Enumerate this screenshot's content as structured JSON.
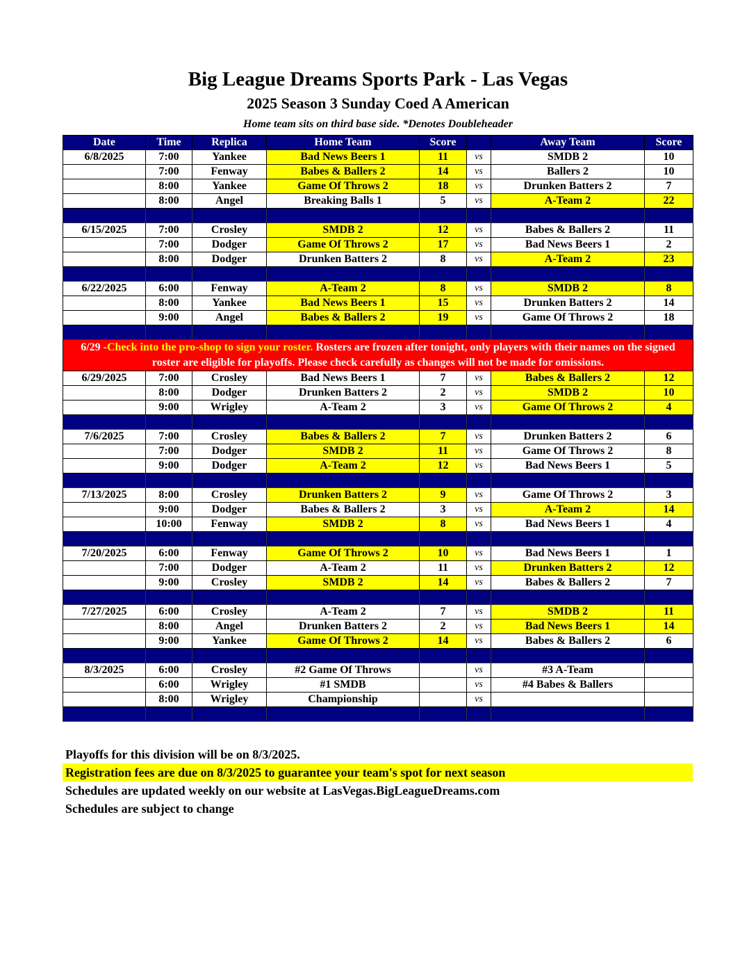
{
  "title": "Big League Dreams Sports Park - Las Vegas",
  "subtitle": "2025 Season 3 Sunday Coed A American",
  "note": "Home team sits on third base side.  *Denotes Doubleheader",
  "headers": [
    "Date",
    "Time",
    "Replica",
    "Home Team",
    "Score",
    "",
    "Away Team",
    "Score"
  ],
  "vs_label": "vs",
  "colors": {
    "header": "#000080",
    "winner": "#ffff00",
    "banner": "#ff0000"
  },
  "banner": {
    "date": "6/29 -",
    "highlight": "Check into the pro-shop to sign your roster.",
    "text": " Rosters are frozen after tonight, only players with their names on the signed roster are eligible for playoffs. Please check carefully as changes will not be made for omissions."
  },
  "weeks": [
    {
      "games": [
        {
          "date": "6/8/2025",
          "time": "7:00",
          "replica": "Yankee",
          "home": "Bad News Beers 1",
          "hs": "11",
          "away": "SMDB 2",
          "as": "10",
          "winner": "home"
        },
        {
          "date": "",
          "time": "7:00",
          "replica": "Fenway",
          "home": "Babes & Ballers 2",
          "hs": "14",
          "away": "Ballers 2",
          "as": "10",
          "winner": "home"
        },
        {
          "date": "",
          "time": "8:00",
          "replica": "Yankee",
          "home": "Game Of Throws 2",
          "hs": "18",
          "away": "Drunken Batters 2",
          "as": "7",
          "winner": "home"
        },
        {
          "date": "",
          "time": "8:00",
          "replica": "Angel",
          "home": "Breaking Balls 1",
          "hs": "5",
          "away": "A-Team 2",
          "as": "22",
          "winner": "away"
        }
      ]
    },
    {
      "games": [
        {
          "date": "6/15/2025",
          "time": "7:00",
          "replica": "Crosley",
          "home": "SMDB 2",
          "hs": "12",
          "away": "Babes & Ballers 2",
          "as": "11",
          "winner": "home"
        },
        {
          "date": "",
          "time": "7:00",
          "replica": "Dodger",
          "home": "Game Of Throws 2",
          "hs": "17",
          "away": "Bad News Beers 1",
          "as": "2",
          "winner": "home"
        },
        {
          "date": "",
          "time": "8:00",
          "replica": "Dodger",
          "home": "Drunken Batters 2",
          "hs": "8",
          "away": "A-Team 2",
          "as": "23",
          "winner": "away"
        }
      ]
    },
    {
      "games": [
        {
          "date": "6/22/2025",
          "time": "6:00",
          "replica": "Fenway",
          "home": "A-Team 2",
          "hs": "8",
          "away": "SMDB 2",
          "as": "8",
          "winner": "both"
        },
        {
          "date": "",
          "time": "8:00",
          "replica": "Yankee",
          "home": "Bad News Beers 1",
          "hs": "15",
          "away": "Drunken Batters 2",
          "as": "14",
          "winner": "home"
        },
        {
          "date": "",
          "time": "9:00",
          "replica": "Angel",
          "home": "Babes & Ballers 2",
          "hs": "19",
          "away": "Game Of Throws 2",
          "as": "18",
          "winner": "home"
        }
      ]
    },
    {
      "banner": true,
      "games": [
        {
          "date": "6/29/2025",
          "time": "7:00",
          "replica": "Crosley",
          "home": "Bad News Beers 1",
          "hs": "7",
          "away": "Babes & Ballers 2",
          "as": "12",
          "winner": "away"
        },
        {
          "date": "",
          "time": "8:00",
          "replica": "Dodger",
          "home": "Drunken Batters 2",
          "hs": "2",
          "away": "SMDB 2",
          "as": "10",
          "winner": "away"
        },
        {
          "date": "",
          "time": "9:00",
          "replica": "Wrigley",
          "home": "A-Team 2",
          "hs": "3",
          "away": "Game Of Throws 2",
          "as": "4",
          "winner": "away"
        }
      ]
    },
    {
      "games": [
        {
          "date": "7/6/2025",
          "time": "7:00",
          "replica": "Crosley",
          "home": "Babes & Ballers 2",
          "hs": "7",
          "away": "Drunken Batters 2",
          "as": "6",
          "winner": "home"
        },
        {
          "date": "",
          "time": "7:00",
          "replica": "Dodger",
          "home": "SMDB 2",
          "hs": "11",
          "away": "Game Of Throws 2",
          "as": "8",
          "winner": "home"
        },
        {
          "date": "",
          "time": "9:00",
          "replica": "Dodger",
          "home": "A-Team 2",
          "hs": "12",
          "away": "Bad News Beers 1",
          "as": "5",
          "winner": "home"
        }
      ]
    },
    {
      "games": [
        {
          "date": "7/13/2025",
          "time": "8:00",
          "replica": "Crosley",
          "home": "Drunken Batters 2",
          "hs": "9",
          "away": "Game Of Throws 2",
          "as": "3",
          "winner": "home"
        },
        {
          "date": "",
          "time": "9:00",
          "replica": "Dodger",
          "home": "Babes & Ballers 2",
          "hs": "3",
          "away": "A-Team 2",
          "as": "14",
          "winner": "away"
        },
        {
          "date": "",
          "time": "10:00",
          "replica": "Fenway",
          "home": "SMDB 2",
          "hs": "8",
          "away": "Bad News Beers 1",
          "as": "4",
          "winner": "home"
        }
      ]
    },
    {
      "games": [
        {
          "date": "7/20/2025",
          "time": "6:00",
          "replica": "Fenway",
          "home": "Game Of Throws 2",
          "hs": "10",
          "away": "Bad News Beers 1",
          "as": "1",
          "winner": "home"
        },
        {
          "date": "",
          "time": "7:00",
          "replica": "Dodger",
          "home": "A-Team 2",
          "hs": "11",
          "away": "Drunken Batters 2",
          "as": "12",
          "winner": "away"
        },
        {
          "date": "",
          "time": "9:00",
          "replica": "Crosley",
          "home": "SMDB 2",
          "hs": "14",
          "away": "Babes & Ballers 2",
          "as": "7",
          "winner": "home"
        }
      ]
    },
    {
      "games": [
        {
          "date": "7/27/2025",
          "time": "6:00",
          "replica": "Crosley",
          "home": "A-Team 2",
          "hs": "7",
          "away": "SMDB 2",
          "as": "11",
          "winner": "away"
        },
        {
          "date": "",
          "time": "8:00",
          "replica": "Angel",
          "home": "Drunken Batters 2",
          "hs": "2",
          "away": "Bad News Beers 1",
          "as": "14",
          "winner": "away"
        },
        {
          "date": "",
          "time": "9:00",
          "replica": "Yankee",
          "home": "Game Of Throws 2",
          "hs": "14",
          "away": "Babes & Ballers 2",
          "as": "6",
          "winner": "home"
        }
      ]
    },
    {
      "games": [
        {
          "date": "8/3/2025",
          "time": "6:00",
          "replica": "Crosley",
          "home": "#2 Game Of Throws",
          "hs": "",
          "away": "#3 A-Team",
          "as": "",
          "winner": ""
        },
        {
          "date": "",
          "time": "6:00",
          "replica": "Wrigley",
          "home": "#1 SMDB",
          "hs": "",
          "away": "#4 Babes & Ballers",
          "as": "",
          "winner": ""
        },
        {
          "date": "",
          "time": "8:00",
          "replica": "Wrigley",
          "home": "Championship",
          "hs": "",
          "away": "",
          "as": "",
          "winner": ""
        }
      ]
    }
  ],
  "footer": [
    "Playoffs for this division will be on 8/3/2025.",
    "Registration fees are due on 8/3/2025 to guarantee your team's spot for next season",
    "Schedules are updated weekly on our website at LasVegas.BigLeagueDreams.com",
    "Schedules are subject to change"
  ]
}
